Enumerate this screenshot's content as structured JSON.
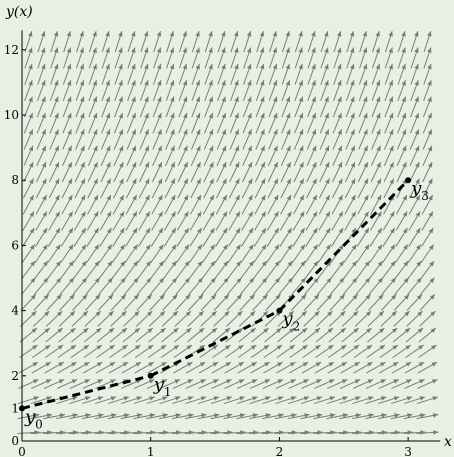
{
  "chart_data": {
    "type": "line",
    "xlabel": "x",
    "ylabel": "y(x)",
    "xlim": [
      0,
      3.25
    ],
    "ylim": [
      0,
      12.6
    ],
    "xticks": [
      0,
      1,
      2,
      3
    ],
    "yticks": [
      0,
      1,
      2,
      4,
      6,
      8,
      10,
      12
    ],
    "grid": false,
    "field": {
      "slope_function": "y"
    },
    "series": [
      {
        "x": [
          0,
          1,
          2,
          3
        ],
        "y": [
          1,
          2,
          4,
          8
        ],
        "style": "dashed",
        "point_labels": [
          {
            "base": "y",
            "sub": "0"
          },
          {
            "base": "y",
            "sub": "1"
          },
          {
            "base": "y",
            "sub": "2"
          },
          {
            "base": "y",
            "sub": "3"
          }
        ]
      }
    ]
  }
}
